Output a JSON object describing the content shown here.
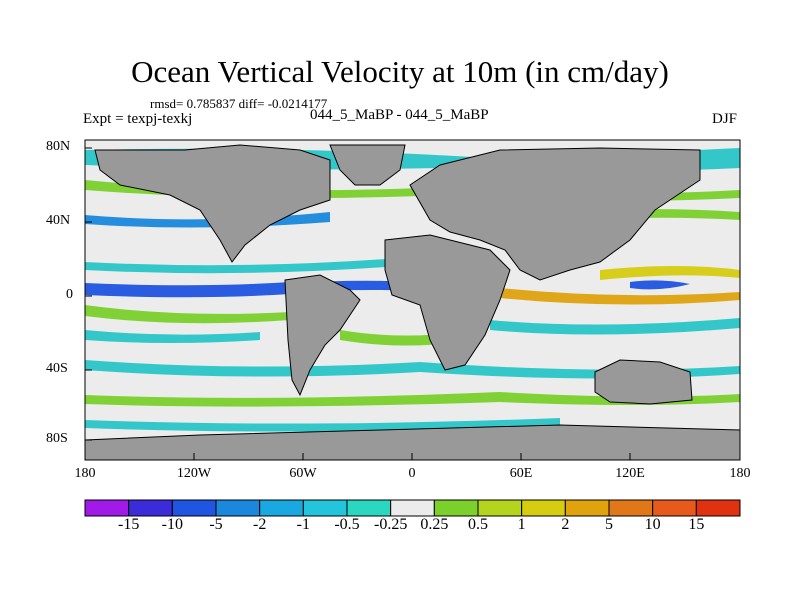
{
  "title": "Ocean Vertical Velocity at 10m (in cm/day)",
  "stats": "rmsd= 0.785837 diff= -0.0214177",
  "subtitle_left": "Expt = texpj-texkj",
  "subtitle_center": "044_5_MaBP - 044_5_MaBP",
  "subtitle_right": "DJF",
  "axes": {
    "y_ticks": [
      "80N",
      "40N",
      "0",
      "40S",
      "80S"
    ],
    "x_ticks": [
      "180",
      "120W",
      "60W",
      "0",
      "60E",
      "120E",
      "180"
    ]
  },
  "colorbar": {
    "labels": [
      "-15",
      "-10",
      "-5",
      "-2",
      "-1",
      "-0.5",
      "-0.25",
      "0.25",
      "0.5",
      "1",
      "2",
      "5",
      "10",
      "15"
    ],
    "colors": [
      "#a01be8",
      "#3b2bd8",
      "#1f55e0",
      "#1b88dd",
      "#1aa8e0",
      "#22c5dc",
      "#2ad7c0",
      "#ececec",
      "#7bd02c",
      "#b4d41e",
      "#d6cc10",
      "#e0a30e",
      "#e0781a",
      "#e8591c",
      "#e03210"
    ]
  },
  "colors": {
    "land": "#999999",
    "background": "#ececec"
  }
}
